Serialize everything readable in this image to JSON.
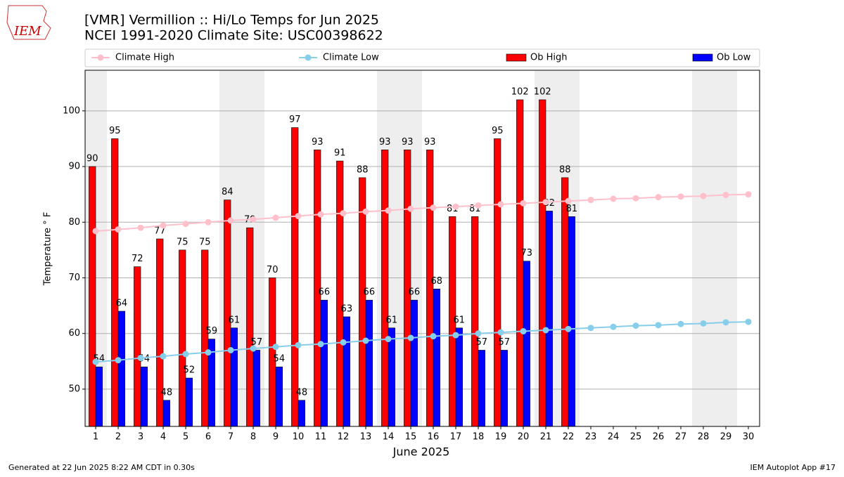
{
  "chart_data": {
    "type": "bar_line",
    "title": "[VMR] Vermillion :: Hi/Lo Temps for Jun 2025",
    "subtitle": "NCEI 1991-2020 Climate Site: USC00398622",
    "logo_text": "IEM",
    "x_label": "June 2025",
    "y_label": "Temperature ° F",
    "footer_left": "Generated at 22 Jun 2025 8:22 AM CDT in 0.30s",
    "footer_right": "IEM Autoplot App #17",
    "x": [
      1,
      2,
      3,
      4,
      5,
      6,
      7,
      8,
      9,
      10,
      11,
      12,
      13,
      14,
      15,
      16,
      17,
      18,
      19,
      20,
      21,
      22,
      23,
      24,
      25,
      26,
      27,
      28,
      29,
      30
    ],
    "xlim": [
      0.53,
      30.5
    ],
    "xticks": [
      1,
      2,
      3,
      4,
      5,
      6,
      7,
      8,
      9,
      10,
      11,
      12,
      13,
      14,
      15,
      16,
      17,
      18,
      19,
      20,
      21,
      22,
      23,
      24,
      25,
      26,
      27,
      28,
      29,
      30
    ],
    "ylim": [
      43.3,
      107.3
    ],
    "yticks": [
      50,
      60,
      70,
      80,
      90,
      100
    ],
    "grid": true,
    "shaded_days": [
      1,
      7,
      8,
      14,
      15,
      21,
      22,
      28,
      29
    ],
    "series": [
      {
        "name": "Climate High",
        "kind": "line",
        "color": "#ffc0cb",
        "values": [
          78.4,
          78.7,
          79.0,
          79.4,
          79.7,
          80.0,
          80.3,
          80.5,
          80.8,
          81.1,
          81.4,
          81.6,
          81.9,
          82.1,
          82.4,
          82.6,
          82.8,
          83.0,
          83.2,
          83.4,
          83.6,
          83.8,
          84.0,
          84.2,
          84.3,
          84.5,
          84.6,
          84.7,
          84.9,
          85.0
        ]
      },
      {
        "name": "Climate Low",
        "kind": "line",
        "color": "#87ceeb",
        "values": [
          54.9,
          55.2,
          55.6,
          55.9,
          56.3,
          56.6,
          57.0,
          57.3,
          57.6,
          57.9,
          58.1,
          58.4,
          58.7,
          59.0,
          59.2,
          59.5,
          59.7,
          60.0,
          60.2,
          60.4,
          60.6,
          60.8,
          61.0,
          61.2,
          61.4,
          61.5,
          61.7,
          61.8,
          62.0,
          62.1
        ]
      },
      {
        "name": "Ob High",
        "kind": "bar",
        "color": "#ff0000",
        "values": [
          90,
          95,
          72,
          77,
          75,
          75,
          84,
          79,
          70,
          97,
          93,
          91,
          88,
          93,
          93,
          93,
          81,
          81,
          95,
          102,
          102,
          88,
          null,
          null,
          null,
          null,
          null,
          null,
          null,
          null
        ]
      },
      {
        "name": "Ob Low",
        "kind": "bar",
        "color": "#0000ff",
        "values": [
          54,
          64,
          54,
          48,
          52,
          59,
          61,
          57,
          54,
          48,
          66,
          63,
          66,
          61,
          66,
          68,
          61,
          57,
          57,
          73,
          82,
          81,
          null,
          null,
          null,
          null,
          null,
          null,
          null,
          null
        ]
      }
    ]
  }
}
